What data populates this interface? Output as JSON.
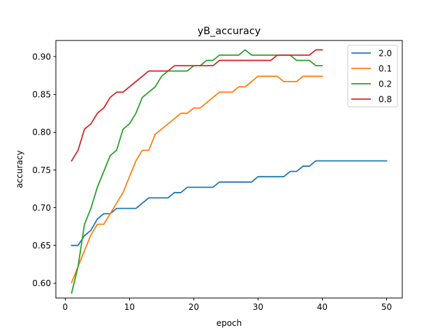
{
  "chart_data": {
    "type": "line",
    "title": "yB_accuracy",
    "xlabel": "epoch",
    "ylabel": "accuracy",
    "xlim": [
      -1.45,
      52.45
    ],
    "ylim": [
      0.5804,
      0.9214
    ],
    "xticks": [
      0,
      10,
      20,
      30,
      40,
      50
    ],
    "yticks": [
      0.6,
      0.65,
      0.7,
      0.75,
      0.8,
      0.85,
      0.9
    ],
    "grid": false,
    "legend_position": "top-right",
    "series": [
      {
        "name": "2.0",
        "color": "#1f77b4",
        "x": [
          1,
          2,
          3,
          4,
          5,
          6,
          7,
          8,
          9,
          10,
          11,
          12,
          13,
          14,
          15,
          16,
          17,
          18,
          19,
          20,
          21,
          22,
          23,
          24,
          25,
          26,
          27,
          28,
          29,
          30,
          31,
          32,
          33,
          34,
          35,
          36,
          37,
          38,
          39,
          40,
          41,
          42,
          43,
          44,
          45,
          46,
          47,
          48,
          49,
          50
        ],
        "values": [
          0.65,
          0.65,
          0.663,
          0.67,
          0.685,
          0.692,
          0.692,
          0.699,
          0.699,
          0.699,
          0.699,
          0.706,
          0.713,
          0.713,
          0.713,
          0.713,
          0.72,
          0.72,
          0.727,
          0.727,
          0.727,
          0.727,
          0.727,
          0.734,
          0.734,
          0.734,
          0.734,
          0.734,
          0.734,
          0.741,
          0.741,
          0.741,
          0.741,
          0.741,
          0.748,
          0.748,
          0.755,
          0.755,
          0.762,
          0.762,
          0.762,
          0.762,
          0.762,
          0.762,
          0.762,
          0.762,
          0.762,
          0.762,
          0.762,
          0.762
        ]
      },
      {
        "name": "0.1",
        "color": "#ff7f0e",
        "x": [
          1,
          2,
          3,
          4,
          5,
          6,
          7,
          8,
          9,
          10,
          11,
          12,
          13,
          14,
          15,
          16,
          17,
          18,
          19,
          20,
          21,
          22,
          23,
          24,
          25,
          26,
          27,
          28,
          29,
          30,
          31,
          32,
          33,
          34,
          35,
          36,
          37,
          38,
          39,
          40
        ],
        "values": [
          0.601,
          0.622,
          0.643,
          0.664,
          0.678,
          0.678,
          0.692,
          0.706,
          0.72,
          0.741,
          0.762,
          0.776,
          0.776,
          0.797,
          0.804,
          0.811,
          0.818,
          0.825,
          0.825,
          0.832,
          0.832,
          0.839,
          0.846,
          0.853,
          0.853,
          0.853,
          0.86,
          0.86,
          0.867,
          0.874,
          0.874,
          0.874,
          0.874,
          0.867,
          0.867,
          0.867,
          0.874,
          0.874,
          0.874,
          0.874
        ]
      },
      {
        "name": "0.2",
        "color": "#2ca02c",
        "x": [
          1,
          2,
          3,
          4,
          5,
          6,
          7,
          8,
          9,
          10,
          11,
          12,
          13,
          14,
          15,
          16,
          17,
          18,
          19,
          20,
          21,
          22,
          23,
          24,
          25,
          26,
          27,
          28,
          29,
          30,
          31,
          32,
          33,
          34,
          35,
          36,
          37,
          38,
          39,
          40
        ],
        "values": [
          0.587,
          0.622,
          0.678,
          0.699,
          0.727,
          0.748,
          0.769,
          0.776,
          0.804,
          0.811,
          0.825,
          0.846,
          0.853,
          0.86,
          0.874,
          0.881,
          0.881,
          0.881,
          0.881,
          0.888,
          0.888,
          0.895,
          0.895,
          0.902,
          0.902,
          0.902,
          0.902,
          0.909,
          0.902,
          0.902,
          0.902,
          0.902,
          0.902,
          0.902,
          0.902,
          0.895,
          0.895,
          0.895,
          0.888,
          0.888
        ]
      },
      {
        "name": "0.8",
        "color": "#d62728",
        "x": [
          1,
          2,
          3,
          4,
          5,
          6,
          7,
          8,
          9,
          10,
          11,
          12,
          13,
          14,
          15,
          16,
          17,
          18,
          19,
          20,
          21,
          22,
          23,
          24,
          25,
          26,
          27,
          28,
          29,
          30,
          31,
          32,
          33,
          34,
          35,
          36,
          37,
          38,
          39,
          40
        ],
        "values": [
          0.762,
          0.776,
          0.804,
          0.811,
          0.825,
          0.832,
          0.846,
          0.853,
          0.853,
          0.86,
          0.867,
          0.874,
          0.881,
          0.881,
          0.881,
          0.881,
          0.888,
          0.888,
          0.888,
          0.888,
          0.888,
          0.888,
          0.888,
          0.895,
          0.895,
          0.895,
          0.895,
          0.895,
          0.895,
          0.895,
          0.895,
          0.895,
          0.902,
          0.902,
          0.902,
          0.902,
          0.902,
          0.902,
          0.909,
          0.909
        ]
      }
    ]
  }
}
